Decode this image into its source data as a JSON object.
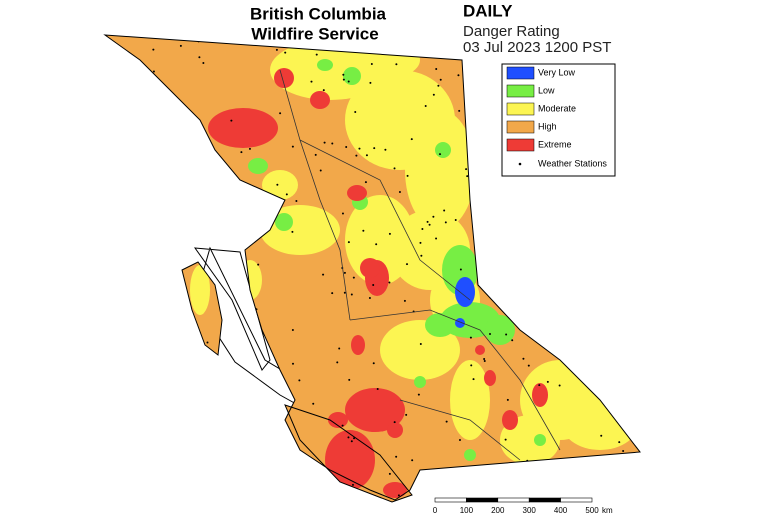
{
  "header": {
    "title_lines": [
      "British Columbia",
      "Wildfire Service"
    ],
    "product": "DAILY",
    "subtitle": "Danger Rating",
    "timestamp": "03 Jul 2023 1200 PST"
  },
  "legend": {
    "items": [
      {
        "label": "Very Low",
        "color": "#1f4fff"
      },
      {
        "label": "Low",
        "color": "#77ee44"
      },
      {
        "label": "Moderate",
        "color": "#fcf552"
      },
      {
        "label": "High",
        "color": "#f2a84a"
      },
      {
        "label": "Extreme",
        "color": "#ee3b36"
      }
    ],
    "stations": "Weather Stations"
  },
  "scale": {
    "ticks": [
      "0",
      "100",
      "200",
      "300",
      "400",
      "500"
    ],
    "unit": "km"
  }
}
